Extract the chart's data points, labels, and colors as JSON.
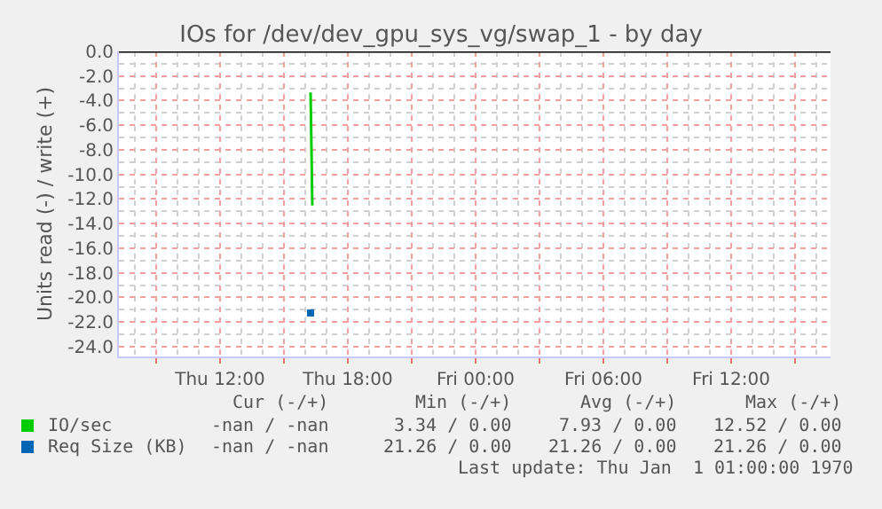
{
  "chart_data": {
    "type": "line",
    "title": "IOs for /dev/dev_gpu_sys_vg/swap_1 - by day",
    "ylabel": "Units read (-) / write (+)",
    "series": [
      {
        "name": "IO/sec",
        "color": "#00cc00",
        "x": [
          "1970-01-01T16:15",
          "1970-01-01T16:20"
        ],
        "values": [
          -3.34,
          -12.52
        ]
      },
      {
        "name": "Req Size (KB)",
        "type": "scatter",
        "marker": "square",
        "color": "#0066b3",
        "x": [
          "1970-01-01T16:15"
        ],
        "values": [
          -21.26
        ]
      }
    ],
    "xlim": [
      "1970-01-01T07:15",
      "1970-01-02T16:40"
    ],
    "xticks": [
      {
        "value": "1970-01-01T09:00",
        "label": null
      },
      {
        "value": "1970-01-01T12:00",
        "label": "Thu 12:00"
      },
      {
        "value": "1970-01-01T15:00",
        "label": null
      },
      {
        "value": "1970-01-01T18:00",
        "label": "Thu 18:00"
      },
      {
        "value": "1970-01-01T21:00",
        "label": null
      },
      {
        "value": "1970-01-02T00:00",
        "label": "Fri 00:00"
      },
      {
        "value": "1970-01-02T03:00",
        "label": null
      },
      {
        "value": "1970-01-02T06:00",
        "label": "Fri 06:00"
      },
      {
        "value": "1970-01-02T09:00",
        "label": null
      },
      {
        "value": "1970-01-02T12:00",
        "label": "Fri 12:00"
      },
      {
        "value": "1970-01-02T15:00",
        "label": null
      }
    ],
    "ylim": [
      -24.8,
      0
    ],
    "yticks": [
      {
        "value": -24,
        "label": "-24.0"
      },
      {
        "value": -22,
        "label": "-22.0"
      },
      {
        "value": -20,
        "label": "-20.0"
      },
      {
        "value": -18,
        "label": "-18.0"
      },
      {
        "value": -16,
        "label": "-16.0"
      },
      {
        "value": -14,
        "label": "-14.0"
      },
      {
        "value": -12,
        "label": "-12.0"
      },
      {
        "value": -10,
        "label": "-10.0"
      },
      {
        "value": -8,
        "label": "-8.0"
      },
      {
        "value": -6,
        "label": "-6.0"
      },
      {
        "value": -4,
        "label": "-4.0"
      },
      {
        "value": -2,
        "label": "-2.0"
      },
      {
        "value": 0,
        "label": "0.0"
      }
    ],
    "ref_lines": [
      {
        "axis": "y",
        "value": 0,
        "color": "#000000"
      }
    ],
    "grid": true,
    "legend": "bottom left",
    "marker": "none",
    "line_style": "solid",
    "annotations": [
      "Cur (-/+)",
      "Min (-/+)",
      "Avg (-/+)",
      "Max (-/+)",
      "-nan / -nan",
      "3.34 / 0.00",
      "7.93 / 0.00",
      "12.52 / 0.00",
      "-nan / -nan",
      "21.26 / 0.00",
      "21.26 / 0.00",
      "21.26 / 0.00",
      "Last update: Thu Jan  1 01:00:00 1970"
    ]
  }
}
